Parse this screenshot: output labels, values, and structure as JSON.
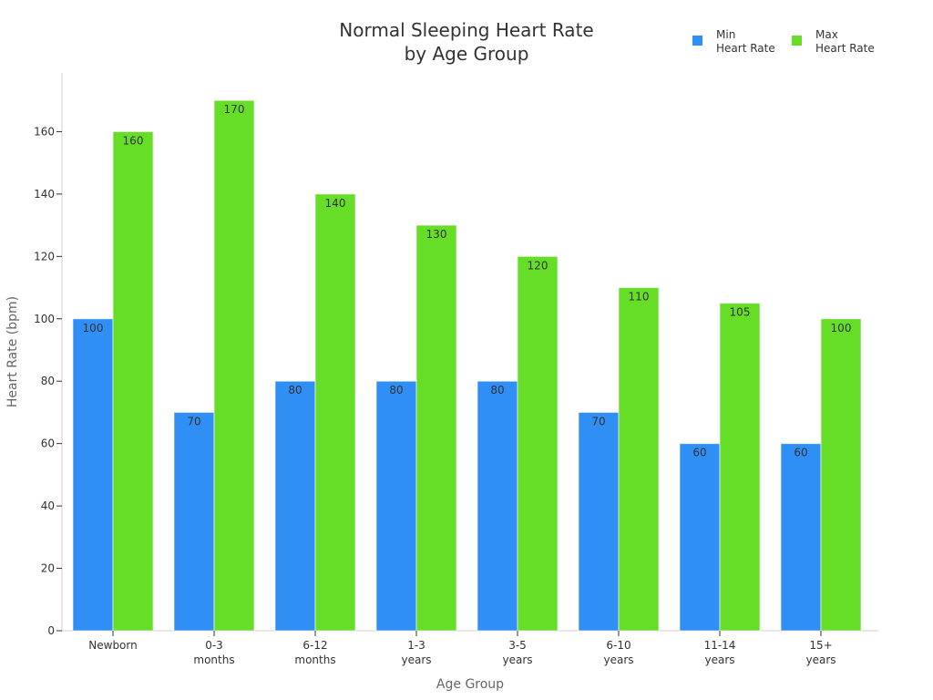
{
  "chart_data": {
    "type": "bar",
    "title": [
      "Normal Sleeping Heart Rate",
      "by Age Group"
    ],
    "xlabel": "Age Group",
    "ylabel": "Heart Rate (bpm)",
    "categories": [
      [
        "Newborn"
      ],
      [
        "0-3",
        "months"
      ],
      [
        "6-12",
        "months"
      ],
      [
        "1-3",
        "years"
      ],
      [
        "3-5",
        "years"
      ],
      [
        "6-10",
        "years"
      ],
      [
        "11-14",
        "years"
      ],
      [
        "15+",
        "years"
      ]
    ],
    "series": [
      {
        "name": [
          "Min",
          "Heart Rate"
        ],
        "color": "#2f8ff5",
        "values": [
          100,
          70,
          80,
          80,
          80,
          70,
          60,
          60
        ]
      },
      {
        "name": [
          "Max",
          "Heart Rate"
        ],
        "color": "#66dd27",
        "values": [
          160,
          170,
          140,
          130,
          120,
          110,
          105,
          100
        ]
      }
    ],
    "ylim": [
      0,
      180
    ],
    "yticks": [
      0,
      20,
      40,
      60,
      80,
      100,
      120,
      140,
      160
    ],
    "grid": false,
    "legend_position": "top-right",
    "data_labels": true
  }
}
